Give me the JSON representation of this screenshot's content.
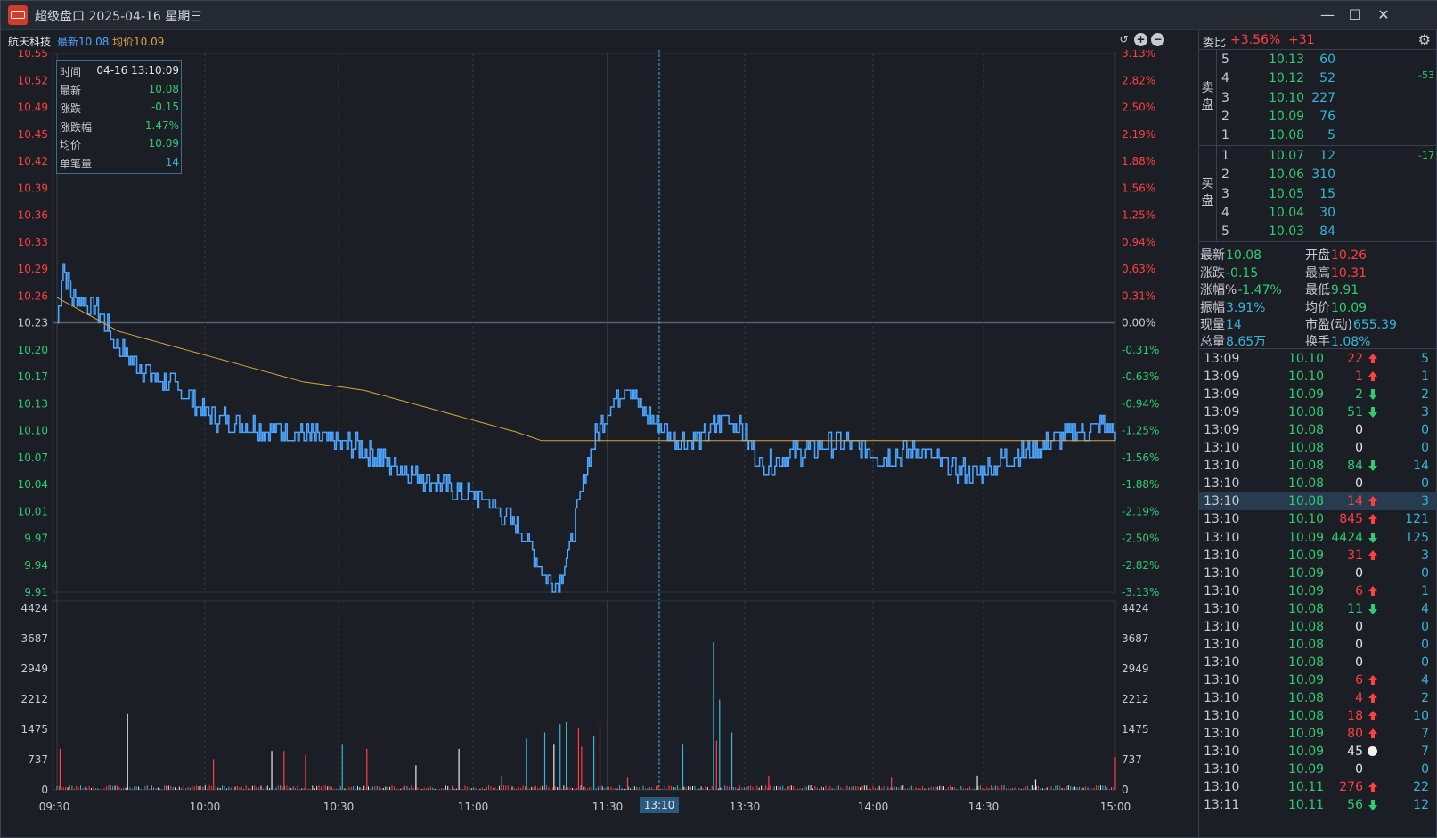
{
  "window": {
    "title": "超级盘口 2025-04-16 星期三",
    "buttons": {
      "minimize": "—",
      "maximize": "☐",
      "close": "✕"
    }
  },
  "infobar": {
    "stock_name": "航天科技",
    "latest_label": "最新10.08",
    "avg_label": "均价10.09"
  },
  "tooltip": {
    "rows": [
      {
        "key": "时间",
        "value": "04-16 13:10:09",
        "color": "#e8e8e8"
      },
      {
        "key": "最新",
        "value": "10.08",
        "color": "#2ecc71"
      },
      {
        "key": "涨跌",
        "value": "-0.15",
        "color": "#2ecc71"
      },
      {
        "key": "涨跌幅",
        "value": "-1.47%",
        "color": "#2ecc71"
      },
      {
        "key": "均价",
        "value": "10.09",
        "color": "#2ecc71"
      },
      {
        "key": "单笔量",
        "value": "14",
        "color": "#36b6d9"
      }
    ]
  },
  "chart_data": {
    "type": "line",
    "prev_close": 10.23,
    "price_axis_left": [
      "10.55",
      "10.52",
      "10.49",
      "10.45",
      "10.42",
      "10.39",
      "10.36",
      "10.33",
      "10.29",
      "10.26",
      "10.23",
      "10.20",
      "10.17",
      "10.13",
      "10.10",
      "10.07",
      "10.04",
      "10.01",
      "9.97",
      "9.94",
      "9.91"
    ],
    "pct_axis_right": [
      "3.13%",
      "2.82%",
      "2.50%",
      "2.19%",
      "1.88%",
      "1.56%",
      "1.25%",
      "0.94%",
      "0.63%",
      "0.31%",
      "0.00%",
      "-0.31%",
      "-0.63%",
      "-0.94%",
      "-1.25%",
      "-1.56%",
      "-1.88%",
      "-2.19%",
      "-2.50%",
      "-2.82%",
      "-3.13%"
    ],
    "ylim": [
      9.91,
      10.55
    ],
    "volume_axis": [
      "4424",
      "3687",
      "2949",
      "2212",
      "1475",
      "737",
      "0"
    ],
    "volume_ylim": [
      0,
      4424
    ],
    "time_labels": [
      "09:30",
      "10:00",
      "10:30",
      "11:00",
      "11:30",
      "13:30",
      "14:00",
      "14:30",
      "15:00"
    ],
    "crosshair_label": "13:10",
    "price_keypoints": [
      [
        0,
        10.23
      ],
      [
        2,
        10.3
      ],
      [
        5,
        10.26
      ],
      [
        12,
        10.25
      ],
      [
        20,
        10.2
      ],
      [
        30,
        10.17
      ],
      [
        40,
        10.15
      ],
      [
        50,
        10.12
      ],
      [
        60,
        10.11
      ],
      [
        75,
        10.1
      ],
      [
        90,
        10.09
      ],
      [
        100,
        10.08
      ],
      [
        110,
        10.06
      ],
      [
        118,
        10.05
      ],
      [
        130,
        10.03
      ],
      [
        140,
        10.02
      ],
      [
        150,
        9.99
      ],
      [
        155,
        9.96
      ],
      [
        159,
        9.93
      ],
      [
        163,
        9.92
      ],
      [
        167,
        9.96
      ],
      [
        172,
        10.05
      ],
      [
        176,
        10.1
      ],
      [
        180,
        10.13
      ],
      [
        186,
        10.16
      ],
      [
        190,
        10.13
      ],
      [
        196,
        10.11
      ],
      [
        202,
        10.09
      ],
      [
        210,
        10.09
      ],
      [
        218,
        10.12
      ],
      [
        222,
        10.11
      ],
      [
        230,
        10.06
      ],
      [
        238,
        10.07
      ],
      [
        245,
        10.08
      ],
      [
        255,
        10.09
      ],
      [
        262,
        10.08
      ],
      [
        270,
        10.07
      ],
      [
        280,
        10.08
      ],
      [
        290,
        10.06
      ],
      [
        300,
        10.05
      ],
      [
        310,
        10.07
      ],
      [
        320,
        10.08
      ],
      [
        330,
        10.1
      ],
      [
        335,
        10.1
      ],
      [
        340,
        10.11
      ],
      [
        345,
        10.1
      ]
    ],
    "avg_keypoints": [
      [
        0,
        10.26
      ],
      [
        20,
        10.22
      ],
      [
        40,
        10.2
      ],
      [
        60,
        10.18
      ],
      [
        80,
        10.16
      ],
      [
        100,
        10.15
      ],
      [
        120,
        10.13
      ],
      [
        140,
        10.11
      ],
      [
        150,
        10.1
      ],
      [
        158,
        10.09
      ],
      [
        170,
        10.09
      ],
      [
        180,
        10.09
      ],
      [
        200,
        10.09
      ],
      [
        240,
        10.09
      ],
      [
        300,
        10.09
      ],
      [
        345,
        10.09
      ]
    ],
    "volume_spikes": [
      [
        1,
        1000,
        "r"
      ],
      [
        23,
        1850,
        "w"
      ],
      [
        51,
        750,
        "r"
      ],
      [
        70,
        950,
        "w"
      ],
      [
        74,
        950,
        "r"
      ],
      [
        81,
        850,
        "r"
      ],
      [
        93,
        1100,
        "c"
      ],
      [
        101,
        1000,
        "r"
      ],
      [
        117,
        600,
        "w"
      ],
      [
        131,
        1000,
        "w"
      ],
      [
        145,
        350,
        "w"
      ],
      [
        153,
        1250,
        "c"
      ],
      [
        159,
        1400,
        "c"
      ],
      [
        162,
        1100,
        "w"
      ],
      [
        164,
        1600,
        "c"
      ],
      [
        166,
        1650,
        "c"
      ],
      [
        170,
        1500,
        "r"
      ],
      [
        171,
        1050,
        "r"
      ],
      [
        175,
        1300,
        "c"
      ],
      [
        177,
        1600,
        "r"
      ],
      [
        186,
        300,
        "r"
      ],
      [
        204,
        1100,
        "c"
      ],
      [
        214,
        3600,
        "c"
      ],
      [
        215,
        1200,
        "r"
      ],
      [
        216,
        2200,
        "c"
      ],
      [
        220,
        1400,
        "c"
      ],
      [
        232,
        350,
        "r"
      ],
      [
        272,
        300,
        "r"
      ],
      [
        300,
        350,
        "w"
      ],
      [
        319,
        250,
        "w"
      ],
      [
        345,
        800,
        "r"
      ]
    ]
  },
  "orderbook": {
    "header_label": "委比",
    "header_pct": "+3.56%",
    "header_diff": "+31",
    "sell_label": "卖盘",
    "buy_label": "买盘",
    "sell_change": "-53",
    "buy_change": "-17",
    "sell": [
      {
        "level": "5",
        "price": "10.13",
        "vol": "60"
      },
      {
        "level": "4",
        "price": "10.12",
        "vol": "52"
      },
      {
        "level": "3",
        "price": "10.10",
        "vol": "227"
      },
      {
        "level": "2",
        "price": "10.09",
        "vol": "76"
      },
      {
        "level": "1",
        "price": "10.08",
        "vol": "5"
      }
    ],
    "buy": [
      {
        "level": "1",
        "price": "10.07",
        "vol": "12"
      },
      {
        "level": "2",
        "price": "10.06",
        "vol": "310"
      },
      {
        "level": "3",
        "price": "10.05",
        "vol": "15"
      },
      {
        "level": "4",
        "price": "10.04",
        "vol": "30"
      },
      {
        "level": "5",
        "price": "10.03",
        "vol": "84"
      }
    ]
  },
  "stats": {
    "latest_k": "最新",
    "latest_v": "10.08",
    "open_k": "开盘",
    "open_v": "10.26",
    "change_k": "涨跌",
    "change_v": "-0.15",
    "high_k": "最高",
    "high_v": "10.31",
    "pct_k": "涨幅%",
    "pct_v": "-1.47%",
    "low_k": "最低",
    "low_v": "9.91",
    "amp_k": "振幅",
    "amp_v": "3.91%",
    "avg_k": "均价",
    "avg_v": "10.09",
    "cur_k": "现量",
    "cur_v": "14",
    "pe_k": "市盈(动)",
    "pe_v": "655.39",
    "total_k": "总量",
    "total_v": "8.65万",
    "turnover_k": "换手",
    "turnover_v": "1.08%"
  },
  "ticks": [
    {
      "time": "13:09",
      "price": "10.10",
      "vol": "22",
      "dir": "up",
      "count": "5",
      "pcolor": "grn",
      "vcolor": "red"
    },
    {
      "time": "13:09",
      "price": "10.10",
      "vol": "1",
      "dir": "up",
      "count": "1",
      "pcolor": "grn",
      "vcolor": "red"
    },
    {
      "time": "13:09",
      "price": "10.09",
      "vol": "2",
      "dir": "down",
      "count": "2",
      "pcolor": "grn",
      "vcolor": "grn"
    },
    {
      "time": "13:09",
      "price": "10.08",
      "vol": "51",
      "dir": "down",
      "count": "3",
      "pcolor": "grn",
      "vcolor": "grn"
    },
    {
      "time": "13:09",
      "price": "10.08",
      "vol": "0",
      "dir": "none",
      "count": "0",
      "pcolor": "grn",
      "vcolor": "wht"
    },
    {
      "time": "13:10",
      "price": "10.08",
      "vol": "0",
      "dir": "none",
      "count": "0",
      "pcolor": "grn",
      "vcolor": "wht"
    },
    {
      "time": "13:10",
      "price": "10.08",
      "vol": "84",
      "dir": "down",
      "count": "14",
      "pcolor": "grn",
      "vcolor": "grn"
    },
    {
      "time": "13:10",
      "price": "10.08",
      "vol": "0",
      "dir": "none",
      "count": "0",
      "pcolor": "grn",
      "vcolor": "wht"
    },
    {
      "time": "13:10",
      "price": "10.08",
      "vol": "14",
      "dir": "up",
      "count": "3",
      "pcolor": "grn",
      "vcolor": "red",
      "sel": true
    },
    {
      "time": "13:10",
      "price": "10.10",
      "vol": "845",
      "dir": "up",
      "count": "121",
      "pcolor": "grn",
      "vcolor": "red"
    },
    {
      "time": "13:10",
      "price": "10.09",
      "vol": "4424",
      "dir": "down",
      "count": "125",
      "pcolor": "grn",
      "vcolor": "grn"
    },
    {
      "time": "13:10",
      "price": "10.09",
      "vol": "31",
      "dir": "up",
      "count": "3",
      "pcolor": "grn",
      "vcolor": "red"
    },
    {
      "time": "13:10",
      "price": "10.09",
      "vol": "0",
      "dir": "none",
      "count": "0",
      "pcolor": "grn",
      "vcolor": "wht"
    },
    {
      "time": "13:10",
      "price": "10.09",
      "vol": "6",
      "dir": "up",
      "count": "1",
      "pcolor": "grn",
      "vcolor": "red"
    },
    {
      "time": "13:10",
      "price": "10.08",
      "vol": "11",
      "dir": "down",
      "count": "4",
      "pcolor": "grn",
      "vcolor": "grn"
    },
    {
      "time": "13:10",
      "price": "10.08",
      "vol": "0",
      "dir": "none",
      "count": "0",
      "pcolor": "grn",
      "vcolor": "wht"
    },
    {
      "time": "13:10",
      "price": "10.08",
      "vol": "0",
      "dir": "none",
      "count": "0",
      "pcolor": "grn",
      "vcolor": "wht"
    },
    {
      "time": "13:10",
      "price": "10.08",
      "vol": "0",
      "dir": "none",
      "count": "0",
      "pcolor": "grn",
      "vcolor": "wht"
    },
    {
      "time": "13:10",
      "price": "10.09",
      "vol": "6",
      "dir": "up",
      "count": "4",
      "pcolor": "grn",
      "vcolor": "red"
    },
    {
      "time": "13:10",
      "price": "10.08",
      "vol": "4",
      "dir": "up",
      "count": "2",
      "pcolor": "grn",
      "vcolor": "red"
    },
    {
      "time": "13:10",
      "price": "10.08",
      "vol": "18",
      "dir": "up",
      "count": "10",
      "pcolor": "grn",
      "vcolor": "red"
    },
    {
      "time": "13:10",
      "price": "10.09",
      "vol": "80",
      "dir": "up",
      "count": "7",
      "pcolor": "grn",
      "vcolor": "red"
    },
    {
      "time": "13:10",
      "price": "10.09",
      "vol": "45",
      "dir": "neutral",
      "count": "7",
      "pcolor": "grn",
      "vcolor": "wht"
    },
    {
      "time": "13:10",
      "price": "10.09",
      "vol": "0",
      "dir": "none",
      "count": "0",
      "pcolor": "grn",
      "vcolor": "wht"
    },
    {
      "time": "13:10",
      "price": "10.11",
      "vol": "276",
      "dir": "up",
      "count": "22",
      "pcolor": "grn",
      "vcolor": "red"
    },
    {
      "time": "13:11",
      "price": "10.11",
      "vol": "56",
      "dir": "down",
      "count": "12",
      "pcolor": "grn",
      "vcolor": "grn"
    }
  ],
  "colors": {
    "up": "#ff4040",
    "down": "#2ecc71",
    "price_line": "#4da6ff",
    "avg_line": "#d9a441",
    "volume_up": "#ff4040",
    "volume_down": "#36b6d9",
    "grid": "#2a2f37"
  },
  "icons": {
    "app": "app-logo-icon",
    "refresh": "refresh-icon",
    "zoom_in": "zoom-in-icon",
    "zoom_out": "zoom-out-icon",
    "settings": "gear-icon"
  }
}
